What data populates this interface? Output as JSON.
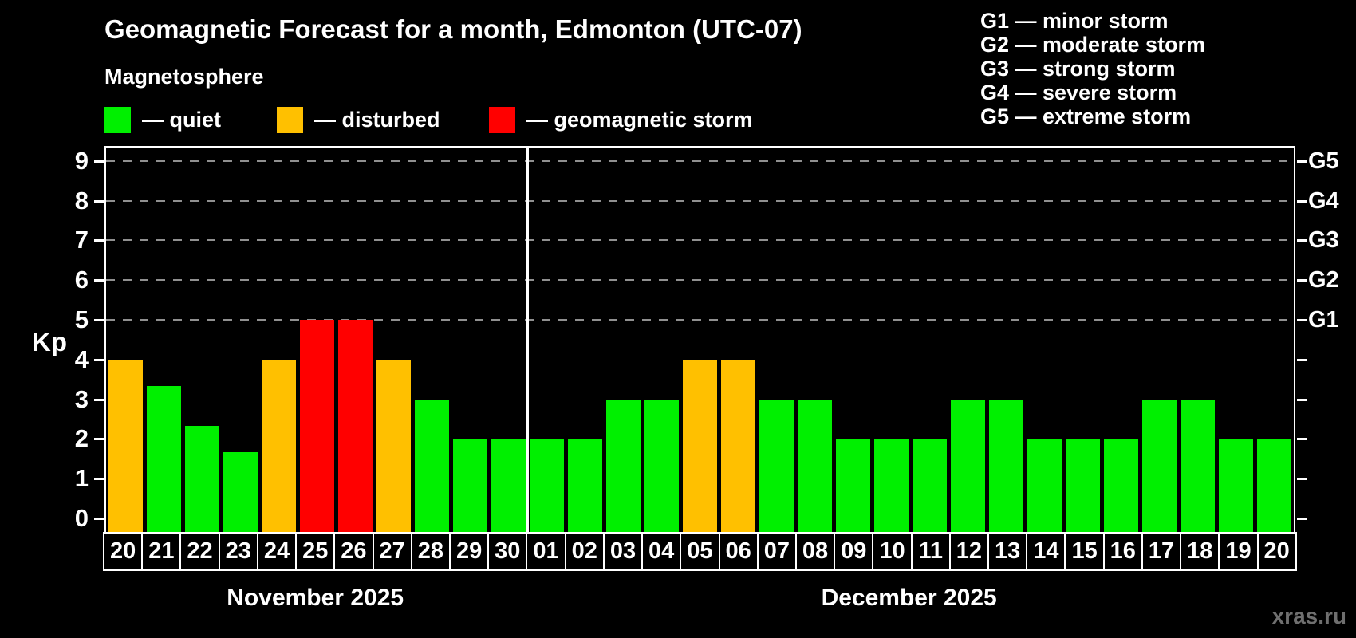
{
  "header": {
    "title": "Geomagnetic Forecast for a month, Edmonton (UTC-07)",
    "subtitle": "Magnetosphere"
  },
  "legend": {
    "items": [
      {
        "label": "— quiet",
        "key": "quiet",
        "color": "#00f000"
      },
      {
        "label": "— disturbed",
        "key": "disturbed",
        "color": "#ffc000"
      },
      {
        "label": "— geomagnetic storm",
        "key": "storm",
        "color": "#ff0000"
      }
    ]
  },
  "g_scale_legend": {
    "lines": [
      "G1 — minor storm",
      "G2 — moderate storm",
      "G3 — strong storm",
      "G4 — severe storm",
      "G5 — extreme storm"
    ]
  },
  "watermark": "xras.ru",
  "chart_data": {
    "type": "bar",
    "title": "Geomagnetic Forecast for a month, Edmonton (UTC-07)",
    "subtitle": "Magnetosphere",
    "ylabel": "Kp",
    "ylim": [
      0,
      9
    ],
    "yticks": [
      0,
      1,
      2,
      3,
      4,
      5,
      6,
      7,
      8,
      9
    ],
    "grid": "dashed horizontal lines at Kp 5,6,7,8,9 only",
    "legend_position": "top-left",
    "right_axis": {
      "labels": [
        {
          "text": "G1",
          "kp": 5
        },
        {
          "text": "G2",
          "kp": 6
        },
        {
          "text": "G3",
          "kp": 7
        },
        {
          "text": "G4",
          "kp": 8
        },
        {
          "text": "G5",
          "kp": 9
        }
      ]
    },
    "months": [
      {
        "label": "November 2025",
        "days": 11
      },
      {
        "label": "December 2025",
        "days": 20
      }
    ],
    "colors": {
      "quiet": "#00f000",
      "disturbed": "#ffc000",
      "storm": "#ff0000"
    },
    "bars": [
      {
        "day": "20",
        "month": "November 2025",
        "kp": 4,
        "status": "disturbed"
      },
      {
        "day": "21",
        "month": "November 2025",
        "kp": 3.33,
        "status": "quiet"
      },
      {
        "day": "22",
        "month": "November 2025",
        "kp": 2.33,
        "status": "quiet"
      },
      {
        "day": "23",
        "month": "November 2025",
        "kp": 1.67,
        "status": "quiet"
      },
      {
        "day": "24",
        "month": "November 2025",
        "kp": 4,
        "status": "disturbed"
      },
      {
        "day": "25",
        "month": "November 2025",
        "kp": 5,
        "status": "storm"
      },
      {
        "day": "26",
        "month": "November 2025",
        "kp": 5,
        "status": "storm"
      },
      {
        "day": "27",
        "month": "November 2025",
        "kp": 4,
        "status": "disturbed"
      },
      {
        "day": "28",
        "month": "November 2025",
        "kp": 3,
        "status": "quiet"
      },
      {
        "day": "29",
        "month": "November 2025",
        "kp": 2,
        "status": "quiet"
      },
      {
        "day": "30",
        "month": "November 2025",
        "kp": 2,
        "status": "quiet"
      },
      {
        "day": "01",
        "month": "December 2025",
        "kp": 2,
        "status": "quiet"
      },
      {
        "day": "02",
        "month": "December 2025",
        "kp": 2,
        "status": "quiet"
      },
      {
        "day": "03",
        "month": "December 2025",
        "kp": 3,
        "status": "quiet"
      },
      {
        "day": "04",
        "month": "December 2025",
        "kp": 3,
        "status": "quiet"
      },
      {
        "day": "05",
        "month": "December 2025",
        "kp": 4,
        "status": "disturbed"
      },
      {
        "day": "06",
        "month": "December 2025",
        "kp": 4,
        "status": "disturbed"
      },
      {
        "day": "07",
        "month": "December 2025",
        "kp": 3,
        "status": "quiet"
      },
      {
        "day": "08",
        "month": "December 2025",
        "kp": 3,
        "status": "quiet"
      },
      {
        "day": "09",
        "month": "December 2025",
        "kp": 2,
        "status": "quiet"
      },
      {
        "day": "10",
        "month": "December 2025",
        "kp": 2,
        "status": "quiet"
      },
      {
        "day": "11",
        "month": "December 2025",
        "kp": 2,
        "status": "quiet"
      },
      {
        "day": "12",
        "month": "December 2025",
        "kp": 3,
        "status": "quiet"
      },
      {
        "day": "13",
        "month": "December 2025",
        "kp": 3,
        "status": "quiet"
      },
      {
        "day": "14",
        "month": "December 2025",
        "kp": 2,
        "status": "quiet"
      },
      {
        "day": "15",
        "month": "December 2025",
        "kp": 2,
        "status": "quiet"
      },
      {
        "day": "16",
        "month": "December 2025",
        "kp": 2,
        "status": "quiet"
      },
      {
        "day": "17",
        "month": "December 2025",
        "kp": 3,
        "status": "quiet"
      },
      {
        "day": "18",
        "month": "December 2025",
        "kp": 3,
        "status": "quiet"
      },
      {
        "day": "19",
        "month": "December 2025",
        "kp": 2,
        "status": "quiet"
      },
      {
        "day": "20",
        "month": "December 2025",
        "kp": 2,
        "status": "quiet"
      }
    ]
  }
}
